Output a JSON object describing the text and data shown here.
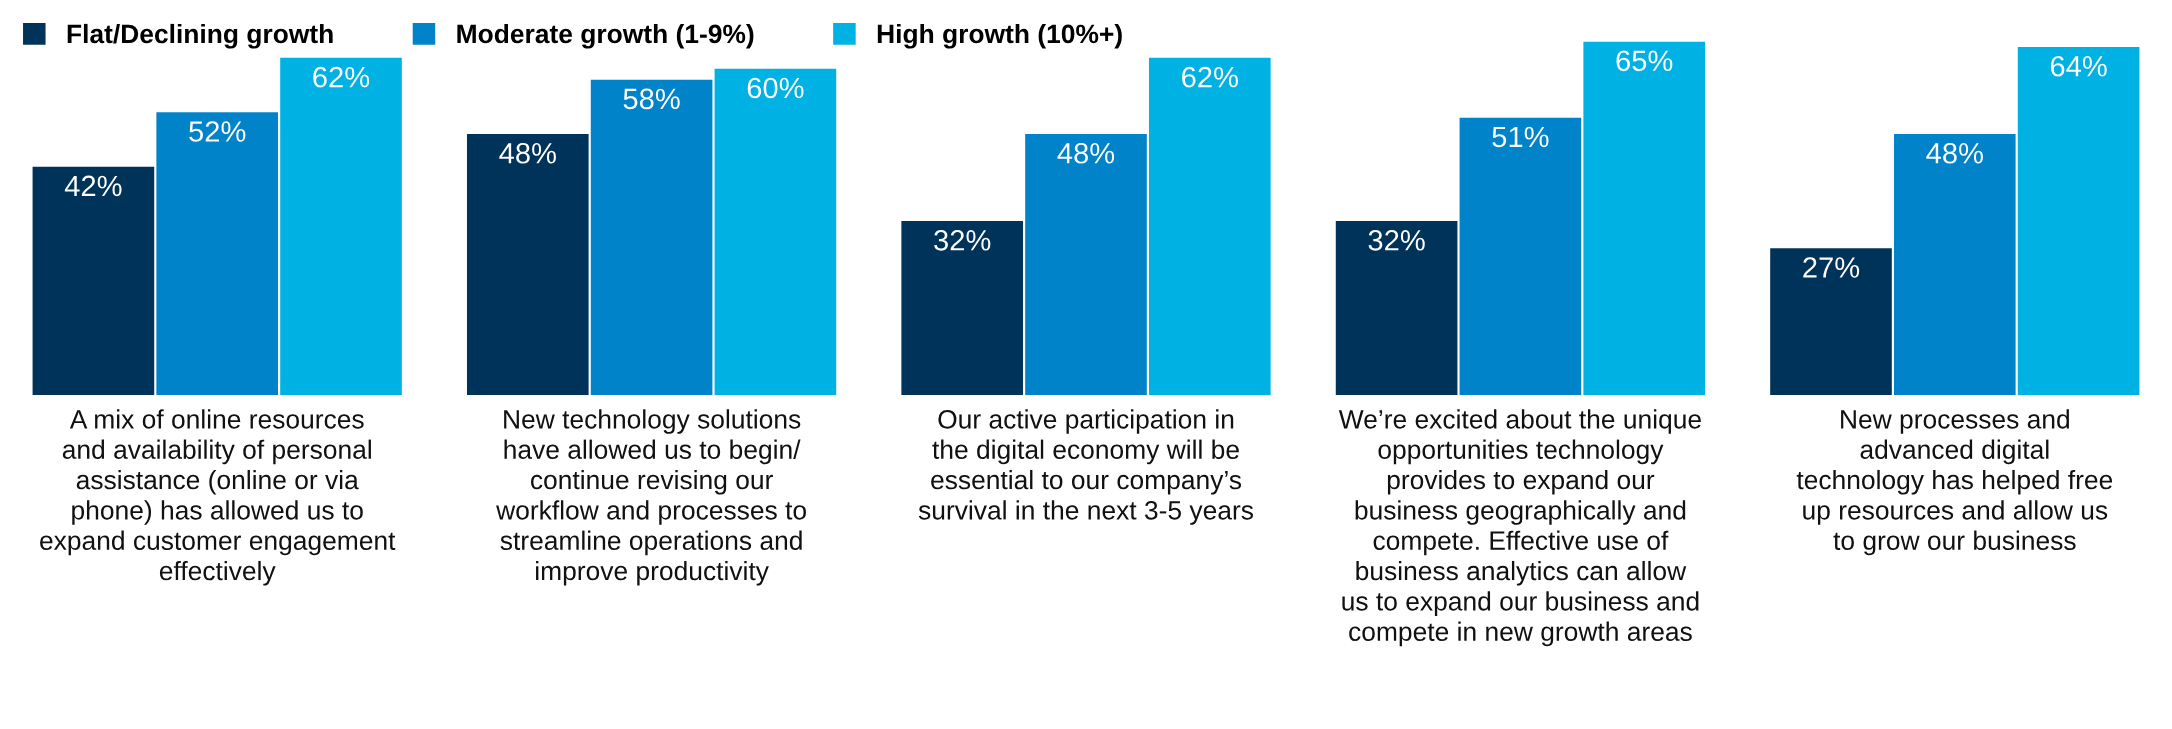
{
  "chart_data": {
    "type": "bar",
    "categories": [
      "A mix of online resources\nand availability of personal\nassistance (online or via\nphone) has allowed us to\nexpand customer engagement\neffectively",
      "New technology solutions\nhave allowed us to begin/\ncontinue revising our\nworkflow and processes to\nstreamline operations and\nimprove productivity",
      "Our active participation in\nthe digital economy will be\nessential to our company’s\nsurvival in the next 3-5 years",
      "We’re excited about the unique\nopportunities technology\nprovides to expand our\nbusiness geographically and\ncompete. Effective use of\nbusiness analytics can allow\nus to expand our business and\ncompete in new growth areas",
      "New processes and\nadvanced digital\ntechnology has helped free\nup resources and allow us\nto grow our business"
    ],
    "series": [
      {
        "name": "Flat/Declining growth",
        "color": "#003359",
        "values": [
          42,
          48,
          32,
          32,
          27
        ],
        "value_labels": [
          "42%",
          "48%",
          "32%",
          "32%",
          "27%"
        ]
      },
      {
        "name": "Moderate growth (1-9%)",
        "color": "#0083c9",
        "values": [
          52,
          58,
          48,
          51,
          48
        ],
        "value_labels": [
          "52%",
          "58%",
          "48%",
          "51%",
          "48%"
        ]
      },
      {
        "name": "High growth (10%+)",
        "color": "#00b2e3",
        "values": [
          62,
          60,
          62,
          65,
          64
        ],
        "value_labels": [
          "62%",
          "60%",
          "62%",
          "65%",
          "64%"
        ]
      }
    ],
    "legend": "top left"
  }
}
